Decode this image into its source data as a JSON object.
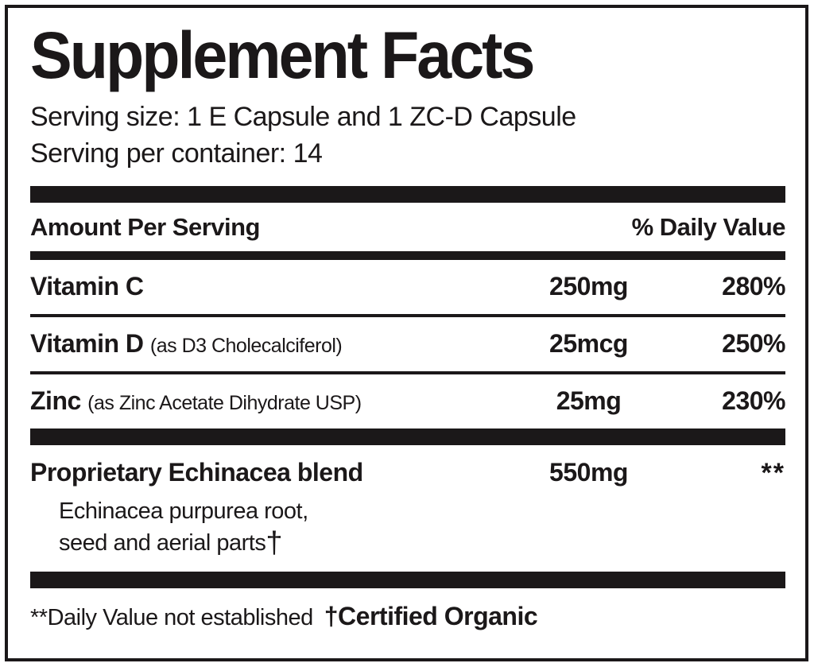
{
  "label": {
    "title": "Supplement Facts",
    "serving_size": "Serving size: 1 E Capsule and 1 ZC-D Capsule",
    "servings_per_container": "Serving per container: 14",
    "header": {
      "amount_per_serving": "Amount Per Serving",
      "daily_value": "% Daily Value"
    },
    "nutrients": [
      {
        "name": "Vitamin C",
        "detail": "",
        "amount": "250mg",
        "dv": "280%"
      },
      {
        "name": "Vitamin D",
        "detail": "(as D3 Cholecalciferol)",
        "amount": "25mcg",
        "dv": "250%"
      },
      {
        "name": "Zinc",
        "detail": "(as Zinc Acetate Dihydrate USP)",
        "amount": "25mg",
        "dv": "230%"
      }
    ],
    "blend": {
      "name": "Proprietary Echinacea blend",
      "amount": "550mg",
      "dv": "**",
      "sub_line1": "Echinacea purpurea root,",
      "sub_line2": "seed and aerial parts",
      "dagger": "†"
    },
    "footer": {
      "dv_note": "**Daily Value not established",
      "certified": "†Certified Organic"
    },
    "colors": {
      "ink": "#1b1819",
      "background": "#ffffff"
    }
  }
}
